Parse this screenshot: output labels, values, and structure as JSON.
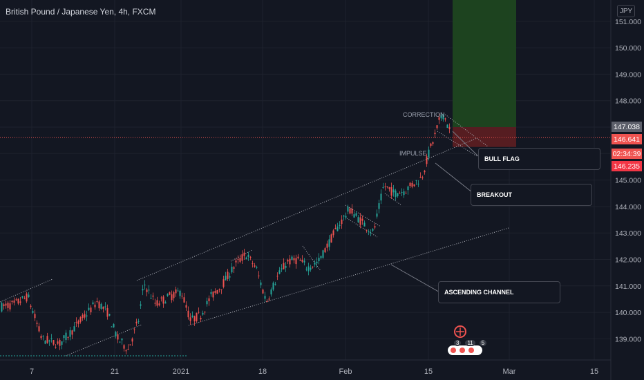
{
  "header": {
    "title": "British Pound / Japanese Yen, 4h, FXCM"
  },
  "currency_badge": "JPY",
  "chart_data": {
    "type": "candlestick",
    "symbol": "GBPJPY",
    "timeframe": "4h",
    "ylim": [
      138.2,
      151.7
    ],
    "y_ticks": [
      "151.000",
      "150.000",
      "149.000",
      "148.000",
      "147.000",
      "146.000",
      "145.000",
      "144.000",
      "143.000",
      "142.000",
      "141.000",
      "140.000",
      "139.000"
    ],
    "x_ticks": [
      "7",
      "21",
      "2021",
      "18",
      "Feb",
      "15",
      "Mar",
      "15"
    ],
    "price_labels": [
      {
        "value": "147.038",
        "color": "#5d606b"
      },
      {
        "value": "146.641",
        "color": "#ef5350"
      },
      {
        "value": "02:34:39",
        "color": "#ef5350"
      },
      {
        "value": "146.235",
        "color": "#f23645"
      }
    ],
    "current_price": 146.641,
    "position": {
      "entry": 147.0,
      "target": 151.7,
      "stop": 146.25
    },
    "annotations": [
      {
        "text": "CORRECTION"
      },
      {
        "text": "IMPULSE"
      },
      {
        "text": "BULL FLAG"
      },
      {
        "text": "BREAKOUT"
      },
      {
        "text": "ASCENDING CHANNEL"
      }
    ],
    "colors": {
      "up": "#26a69a",
      "down": "#ef5350",
      "background": "#131722",
      "target_zone": "#1e4620",
      "stop_zone": "#5a1e22"
    }
  },
  "watermark": {
    "badges": [
      "3",
      "11",
      "5"
    ]
  }
}
